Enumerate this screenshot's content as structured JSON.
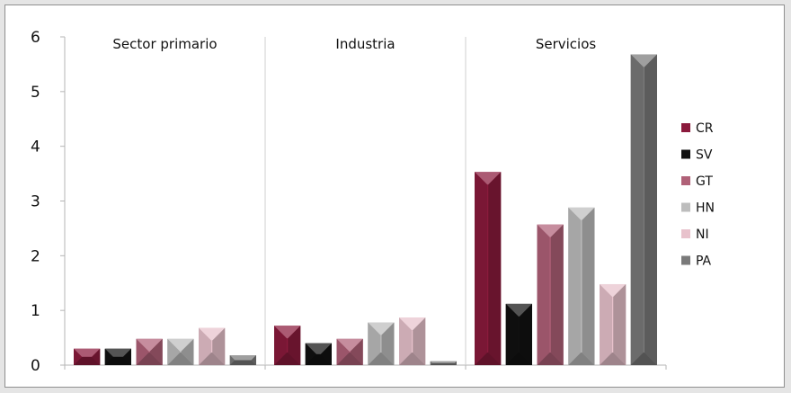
{
  "chart_data": {
    "type": "bar",
    "categories": [
      "Sector primario",
      "Industria",
      "Servicios"
    ],
    "series": [
      {
        "name": "CR",
        "color": "#8b1a3c",
        "values": [
          0.3,
          0.72,
          3.53
        ]
      },
      {
        "name": "SV",
        "color": "#111111",
        "values": [
          0.3,
          0.4,
          1.12
        ]
      },
      {
        "name": "GT",
        "color": "#b06178",
        "values": [
          0.48,
          0.48,
          2.57
        ]
      },
      {
        "name": "HN",
        "color": "#bdbdbd",
        "values": [
          0.48,
          0.78,
          2.88
        ]
      },
      {
        "name": "NI",
        "color": "#e8c2cc",
        "values": [
          0.68,
          0.87,
          1.48
        ]
      },
      {
        "name": "PA",
        "color": "#7a7a7a",
        "values": [
          0.18,
          0.07,
          5.68
        ]
      }
    ],
    "ylim": [
      0,
      6
    ],
    "yticks": [
      "0",
      "1",
      "2",
      "3",
      "4",
      "5",
      "6"
    ],
    "xlabel": "",
    "ylabel": "",
    "legend_position": "right",
    "grid": false,
    "bar_style": "3d-pyramid-bevel"
  }
}
